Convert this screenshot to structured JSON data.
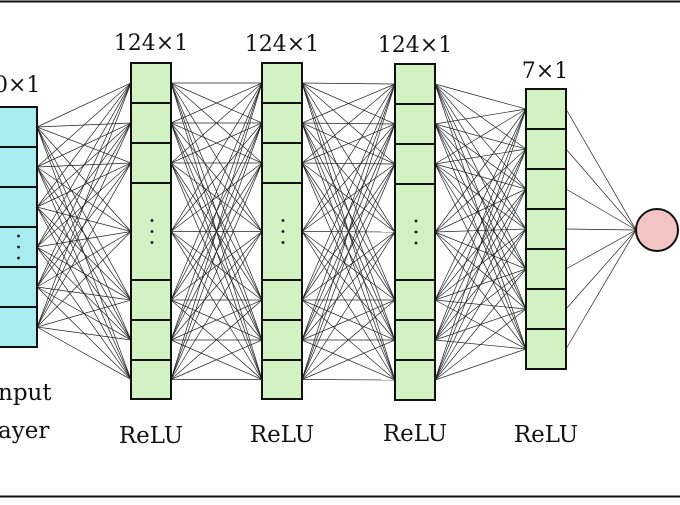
{
  "colors": {
    "input_fill": "#a8ecf0",
    "hidden_fill": "#d2f2c4",
    "output_fill": "#f3c4c4",
    "stroke": "#111111",
    "edge": "#222222"
  },
  "layers": [
    {
      "id": "input",
      "dim_label": "0×1",
      "caption_lines": [
        "nput",
        "ayer"
      ],
      "cells": 6,
      "ellipsis_cell": 4
    },
    {
      "id": "hidden-1",
      "dim_label": "124×1",
      "activation": "ReLU",
      "cells": 8,
      "ellipsis_cell": 4
    },
    {
      "id": "hidden-2",
      "dim_label": "124×1",
      "activation": "ReLU",
      "cells": 8,
      "ellipsis_cell": 4
    },
    {
      "id": "hidden-3",
      "dim_label": "124×1",
      "activation": "ReLU",
      "cells": 8,
      "ellipsis_cell": 4
    },
    {
      "id": "hidden-4",
      "dim_label": "7×1",
      "activation": "ReLU",
      "cells": 7
    },
    {
      "id": "output",
      "shape": "circle"
    }
  ]
}
